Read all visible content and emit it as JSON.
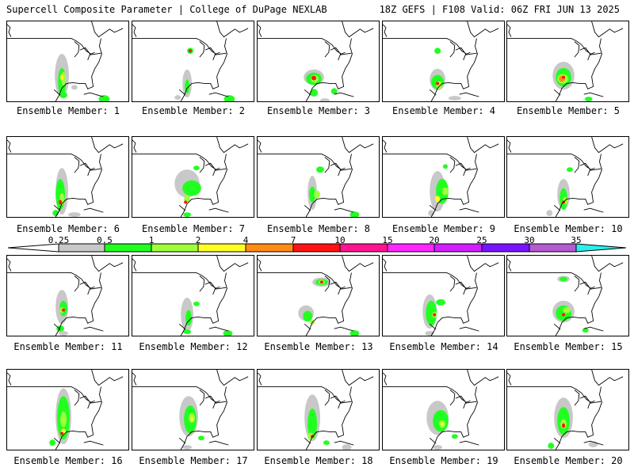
{
  "header": {
    "title": "Supercell Composite Parameter | College of DuPage NEXLAB",
    "run_info": "18Z GEFS | F108 Valid: 06Z FRI JUN 13 2025"
  },
  "legend": {
    "ticks": [
      "0.25",
      "0.5",
      "1",
      "2",
      "4",
      "7",
      "10",
      "15",
      "20",
      "25",
      "30",
      "35"
    ],
    "colors": [
      "#c8c8c8",
      "#21ff21",
      "#a0ff3c",
      "#ffff28",
      "#ff8c14",
      "#ff1414",
      "#ff1490",
      "#ff28ff",
      "#d21eff",
      "#7814ff",
      "#b45ad2",
      "#28f0f0"
    ]
  },
  "panels": [
    {
      "caption": "Ensemble Member: 1"
    },
    {
      "caption": "Ensemble Member: 2"
    },
    {
      "caption": "Ensemble Member: 3"
    },
    {
      "caption": "Ensemble Member: 4"
    },
    {
      "caption": "Ensemble Member: 5"
    },
    {
      "caption": "Ensemble Member: 6"
    },
    {
      "caption": "Ensemble Member: 7"
    },
    {
      "caption": "Ensemble Member: 8"
    },
    {
      "caption": "Ensemble Member: 9"
    },
    {
      "caption": "Ensemble Member: 10"
    },
    {
      "caption": "Ensemble Member: 11"
    },
    {
      "caption": "Ensemble Member: 12"
    },
    {
      "caption": "Ensemble Member: 13"
    },
    {
      "caption": "Ensemble Member: 14"
    },
    {
      "caption": "Ensemble Member: 15"
    },
    {
      "caption": "Ensemble Member: 16"
    },
    {
      "caption": "Ensemble Member: 17"
    },
    {
      "caption": "Ensemble Member: 18"
    },
    {
      "caption": "Ensemble Member: 19"
    },
    {
      "caption": "Ensemble Member: 20"
    }
  ]
}
